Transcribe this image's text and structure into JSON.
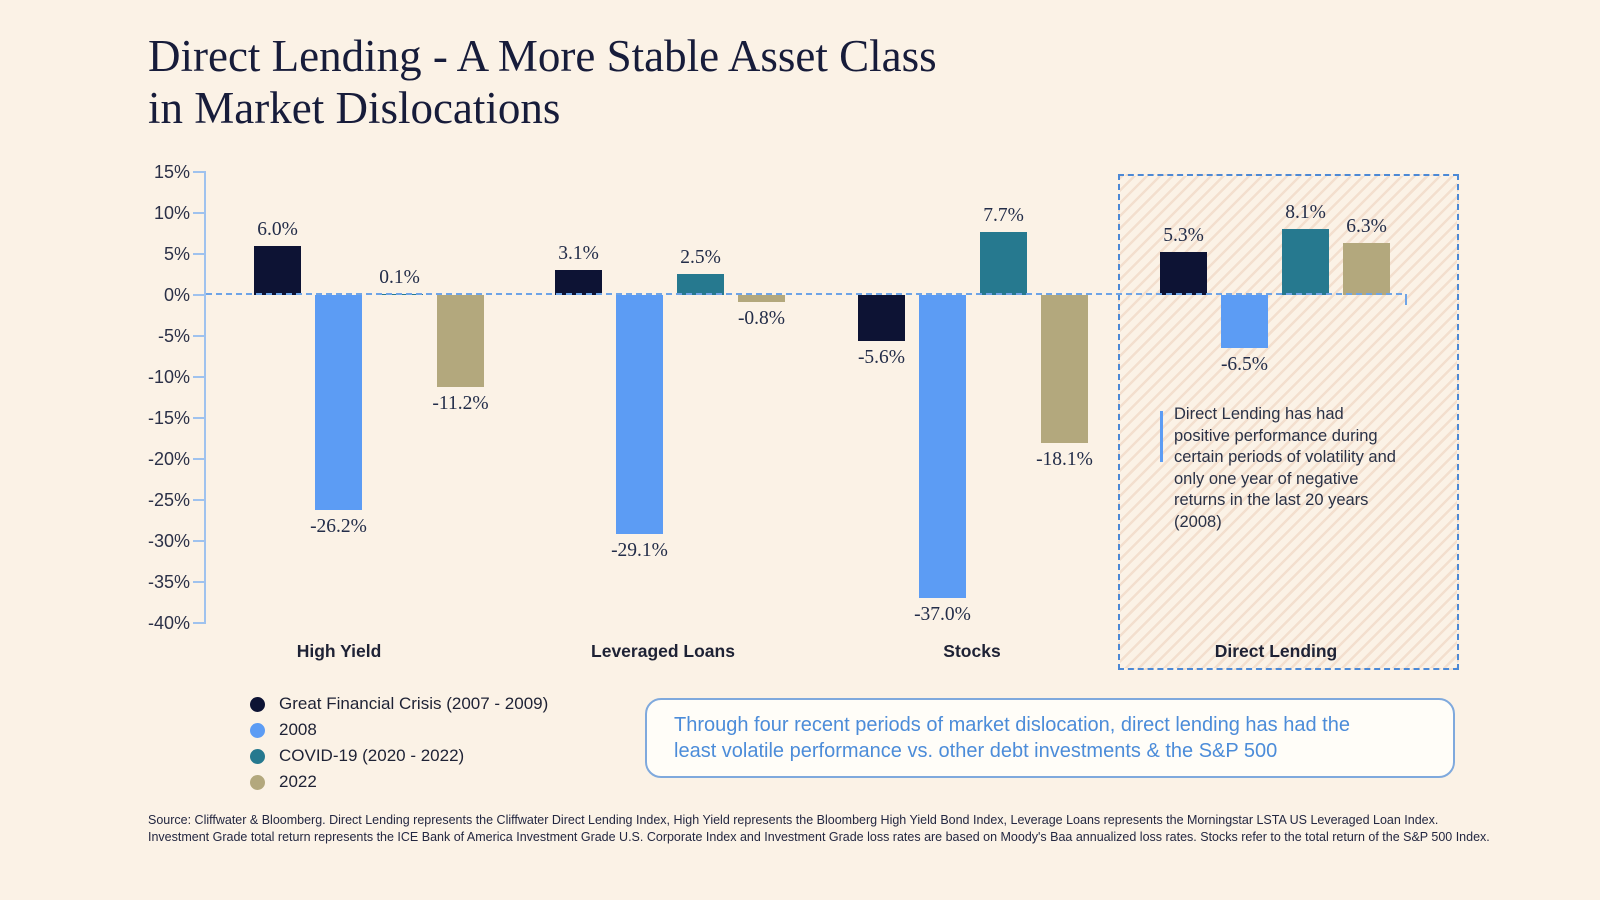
{
  "header": {
    "title_line1": "Direct Lending - A More Stable Asset Class",
    "title_line2": "in Market Dislocations"
  },
  "chart_data": {
    "type": "bar",
    "title": "Direct Lending - A More Stable Asset Class in Market Dislocations",
    "categories": [
      "High Yield",
      "Leveraged Loans",
      "Stocks",
      "Direct Lending"
    ],
    "series": [
      {
        "name": "Great Financial Crisis (2007 - 2009)",
        "color": "#0d1334",
        "values": [
          6.0,
          3.1,
          -5.6,
          5.3
        ],
        "labels": [
          "6.0%",
          "3.1%",
          "-5.6%",
          "5.3%"
        ]
      },
      {
        "name": "2008",
        "color": "#5c9cf4",
        "values": [
          -26.2,
          -29.1,
          -37.0,
          -6.5
        ],
        "labels": [
          "-26.2%",
          "-29.1%",
          "-37.0%",
          "-6.5%"
        ]
      },
      {
        "name": "COVID-19 (2020 - 2022)",
        "color": "#26798f",
        "values": [
          0.1,
          2.5,
          7.7,
          8.1
        ],
        "labels": [
          "0.1%",
          "2.5%",
          "7.7%",
          "8.1%"
        ]
      },
      {
        "name": "2022",
        "color": "#b3a87d",
        "values": [
          -11.2,
          -0.8,
          -18.1,
          6.3
        ],
        "labels": [
          "-11.2%",
          "-0.8%",
          "-18.1%",
          "6.3%"
        ]
      }
    ],
    "ylim": [
      -40,
      15
    ],
    "yticks": [
      15,
      10,
      5,
      0,
      -5,
      -10,
      -15,
      -20,
      -25,
      -30,
      -35,
      -40
    ],
    "ytick_labels": [
      "15%",
      "10%",
      "5%",
      "0%",
      "-5%",
      "-10%",
      "-15%",
      "-20%",
      "-25%",
      "-30%",
      "-35%",
      "-40%"
    ],
    "grid": false,
    "legend_position": "bottom-left",
    "highlighted_category": "Direct Lending"
  },
  "highlight_note": {
    "text": "Direct Lending has had positive performance during certain periods of volatility and only one year of negative returns in the last 20 years (2008)"
  },
  "summary_callout": {
    "line1": "Through four recent periods of market dislocation, direct lending has had the",
    "line2": "least volatile performance vs. other debt investments & the S&P 500"
  },
  "source": {
    "line1": "Source: Cliffwater & Bloomberg. Direct Lending represents the Cliffwater Direct Lending Index, High Yield represents the Bloomberg High Yield Bond Index, Leverage Loans represents the Morningstar LSTA US Leveraged Loan Index.",
    "line2": "Investment Grade total return represents the ICE Bank of America Investment Grade U.S. Corporate Index and Investment Grade loss rates are based on Moody's Baa annualized loss rates. Stocks refer to the total return of the S&P 500 Index."
  },
  "colors": {
    "background": "#fbf2e6",
    "title_text": "#171c3a",
    "axis_blue": "#9fc2ee",
    "zero_line_blue": "#6ea4e7",
    "highlight_border_blue": "#4c89d6",
    "hatch_stripe": "#e9c8b2",
    "annotation_accent_blue": "#5c9cf4",
    "callout_border_blue": "#7fa9dd",
    "callout_text_blue": "#4c8cd9",
    "bar_navy": "#0d1334",
    "bar_light_blue": "#5c9cf4",
    "bar_teal": "#26798f",
    "bar_tan": "#b3a87d"
  }
}
